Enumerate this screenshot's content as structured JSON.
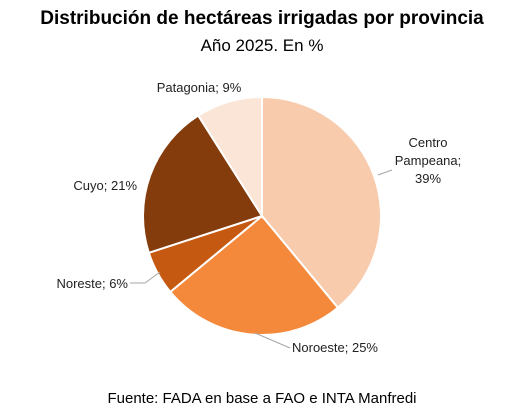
{
  "chart_data": {
    "type": "pie",
    "title": "Distribución de hectáreas irrigadas por provincia",
    "subtitle": "Año 2025. En %",
    "slices": [
      {
        "name": "Centro Pampeana",
        "value": 39,
        "label_lines": [
          "Centro",
          "Pampeana;",
          "39%"
        ],
        "color": "#F8CBAD"
      },
      {
        "name": "Noroeste",
        "value": 25,
        "label_lines": [
          "Noroeste; 25%"
        ],
        "color": "#F4893B"
      },
      {
        "name": "Noreste",
        "value": 6,
        "label_lines": [
          "Noreste; 6%"
        ],
        "color": "#C65911"
      },
      {
        "name": "Cuyo",
        "value": 21,
        "label_lines": [
          "Cuyo; 21%"
        ],
        "color": "#843C0C"
      },
      {
        "name": "Patagonia",
        "value": 9,
        "label_lines": [
          "Patagonia; 9%"
        ],
        "color": "#FBE5D6"
      }
    ],
    "source": "Fuente: FADA en base a FAO e INTA Manfredi"
  }
}
